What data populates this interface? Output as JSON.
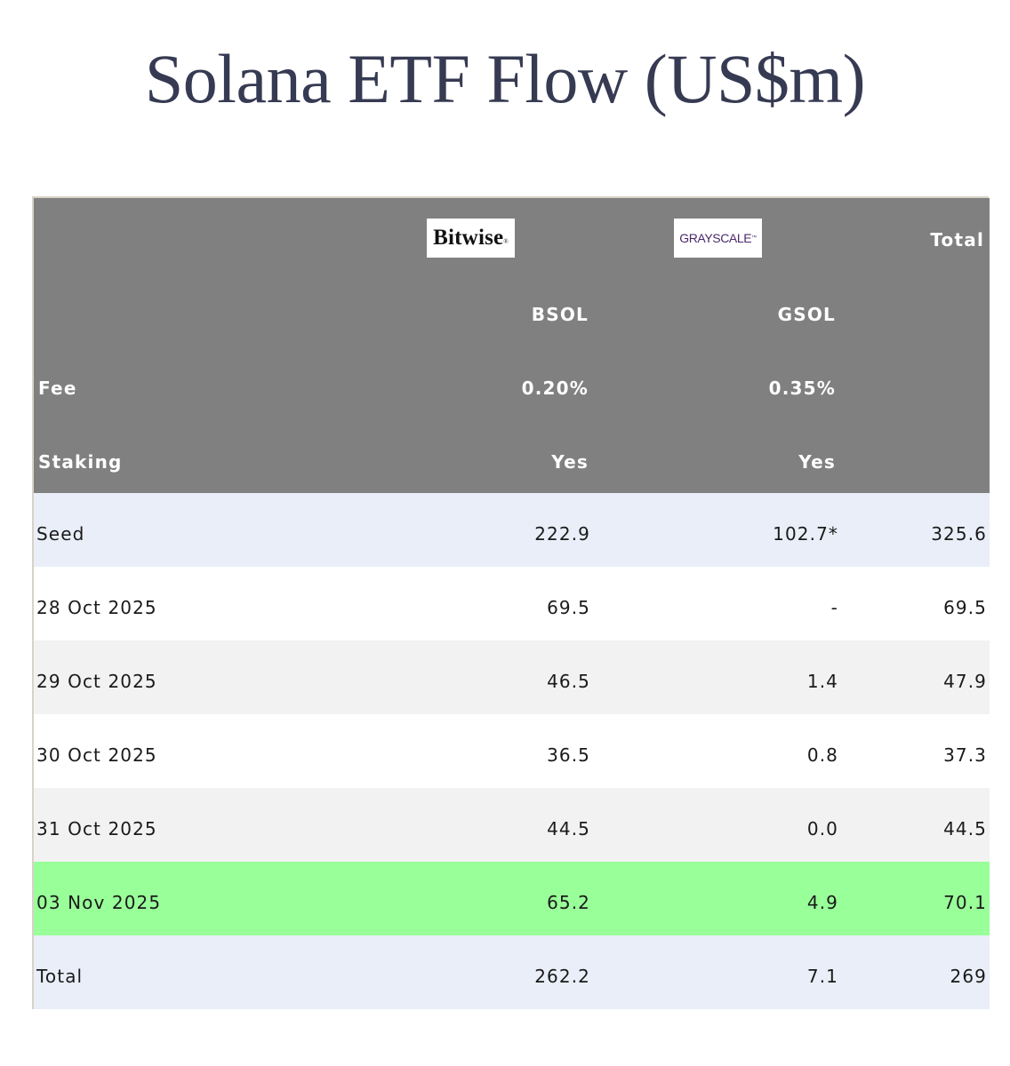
{
  "title": "Solana ETF Flow (US$m)",
  "chart_data": {
    "type": "table",
    "title": "Solana ETF Flow (US$m)",
    "header": {
      "issuer_logos": {
        "bsol": "Bitwise",
        "gsol": "GRAYSCALE"
      },
      "total_label": "Total",
      "tickers": {
        "bsol": "BSOL",
        "gsol": "GSOL"
      },
      "fee": {
        "label": "Fee",
        "bsol": "0.20%",
        "gsol": "0.35%"
      },
      "staking": {
        "label": "Staking",
        "bsol": "Yes",
        "gsol": "Yes"
      }
    },
    "columns": [
      "",
      "BSOL",
      "GSOL",
      "Total"
    ],
    "rows": [
      {
        "label": "Seed",
        "bsol": "222.9",
        "gsol": "102.7*",
        "total": "325.6",
        "bg": "#e9eef8"
      },
      {
        "label": "28 Oct 2025",
        "bsol": "69.5",
        "gsol": "-",
        "total": "69.5",
        "bg": "#ffffff"
      },
      {
        "label": "29 Oct 2025",
        "bsol": "46.5",
        "gsol": "1.4",
        "total": "47.9",
        "bg": "#f2f2f2"
      },
      {
        "label": "30 Oct 2025",
        "bsol": "36.5",
        "gsol": "0.8",
        "total": "37.3",
        "bg": "#ffffff"
      },
      {
        "label": "31 Oct 2025",
        "bsol": "44.5",
        "gsol": "0.0",
        "total": "44.5",
        "bg": "#f2f2f2"
      },
      {
        "label": "03 Nov 2025",
        "bsol": "65.2",
        "gsol": "4.9",
        "total": "70.1",
        "bg": "#99ff99"
      },
      {
        "label": "Total",
        "bsol": "262.2",
        "gsol": "7.1",
        "total": "269",
        "bg": "#e9eef8"
      }
    ]
  },
  "colors": {
    "header_bg": "#808080",
    "title_color": "#363a52",
    "highlight_green": "#99ff99",
    "seed_total_bg": "#e9eef8",
    "alt_row_bg": "#f2f2f2"
  }
}
